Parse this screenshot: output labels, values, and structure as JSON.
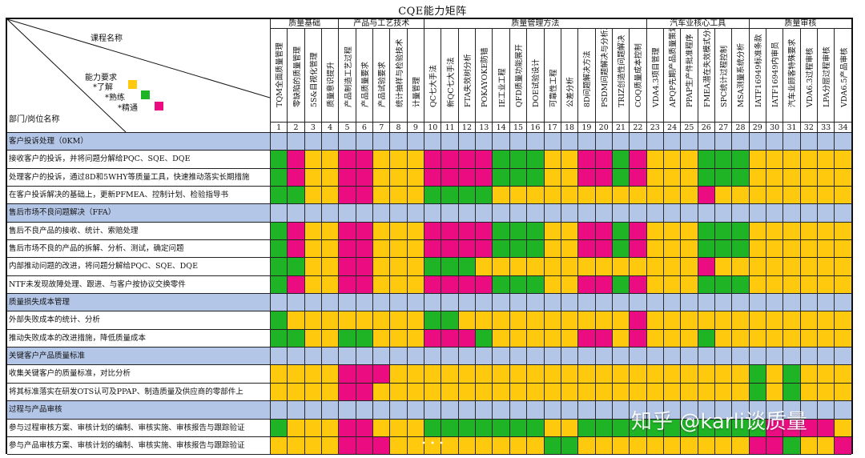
{
  "title": "CQE能力矩阵",
  "corner": {
    "course_label": "课程名称",
    "dept_label": "部门/岗位名称",
    "legend_title": "能力要求",
    "legend": [
      {
        "label": "*了解",
        "color": "#ffc90e"
      },
      {
        "label": "*熟练",
        "color": "#1fb425"
      },
      {
        "label": "*精通",
        "color": "#ec0c82"
      }
    ]
  },
  "colors": {
    "Y": "#ffc90e",
    "G": "#1fb425",
    "P": "#ec0c82",
    "section": "#b4c6e7"
  },
  "groups": [
    {
      "label": "质量基础",
      "span": 4
    },
    {
      "label": "产品与工艺技术",
      "span": 5
    },
    {
      "label": "质量管理方法",
      "span": 13
    },
    {
      "label": "汽车业核心工具",
      "span": 6
    },
    {
      "label": "质量审核",
      "span": 6
    }
  ],
  "courses": [
    "TQM全面质量管理",
    "零缺陷的质量管理",
    "5S&目视化管理",
    "质量意识提升",
    "产品制造工艺过程",
    "产品质量要求",
    "产品试验要求",
    "统计抽样与检验技术",
    "计量管理",
    "QC七大手法",
    "新QC七大手法",
    "FTA失效树分析",
    "POKAYOKE防错",
    "IE工业工程",
    "QFD质量功能展开",
    "DOE试验设计",
    "可靠性工程",
    "公差分析",
    "8D问题解决方法",
    "PSDM问题解决与分析决策",
    "TRIZ创造性问题解决",
    "COQ质量成本控制",
    "VDA4.3项目管理",
    "APQP先期产品质量策划",
    "PPAP生产件批准程序",
    "FMEA潜在失效模式分析",
    "SPC统计过程控制",
    "MSA测量系统分析",
    "IATF16949标准条款",
    "IATF16949内审员",
    "汽车业顾客特殊要求",
    "VDA6.3过程审核",
    "LPA分层过程审核",
    "VDA6.5产品审核"
  ],
  "numbers": [
    "1",
    "2",
    "3",
    "4",
    "5",
    "6",
    "7",
    "8",
    "9",
    "10",
    "11",
    "12",
    "13",
    "14",
    "15",
    "16",
    "17",
    "18",
    "19",
    "20",
    "21",
    "22",
    "23",
    "24",
    "25",
    "26",
    "27",
    "28",
    "29",
    "30",
    "31",
    "32",
    "33",
    "34"
  ],
  "rows": [
    {
      "type": "section",
      "label": "客户投诉处理（0KM）"
    },
    {
      "type": "task",
      "label": "接收客户的投诉，并将问题分解给PQC、SQE、DQE",
      "cells": "GPYYPPYYYPPPPGGGYYPPGPYYYGGGYYYYYY"
    },
    {
      "type": "task",
      "label": "处理客户的投诉，通过8D和5WHY等质量工具，快速推动落实长期措施",
      "cells": "GPYYPPYYYPPPPGGGYYPPGPYYYGGGYYYYYY"
    },
    {
      "type": "task",
      "label": "在客户投诉解决的基础上，更新PFMEA、控制计划、检验指导书",
      "cells": "GGYYPPYYYGGGGYYYYYYYYYYYYPYYYYYYYY"
    },
    {
      "type": "section",
      "label": "售后市场不良问题解决（FFA）"
    },
    {
      "type": "task",
      "label": "售后不良产品的接收、统计、索赔处理",
      "cells": "GPYYPPYYYPPPPGGGYYPPGPYYYGGGYYYYYY"
    },
    {
      "type": "task",
      "label": "售后市场不良的产品的拆解、分析、测试，确定问题",
      "cells": "GPYYPPYYYPPPPGGGYYPPGPYYYGGGYYYYYY"
    },
    {
      "type": "task",
      "label": "内部推动问题的改进，将问题分解给PQC、SQE、DQE",
      "cells": "GGYYPPYYYGGGYYYYYYYYYYYYYPYYYYYYYY"
    },
    {
      "type": "task",
      "label": "NTF未发现故障处理、跟进、与客户按协议交换零件",
      "cells": "GPYYPPYYYPPPPGGGYYPPGPYYYGGGYYYYYY"
    },
    {
      "type": "section",
      "label": "质量损失成本管理"
    },
    {
      "type": "task",
      "label": "外部失败成本的统计、分析",
      "cells": "GYYYYYYYYGGYYYYYYYYYYPYYYYYYYYYYYY"
    },
    {
      "type": "task",
      "label": "推动失败成本的改进措施，降低质量成本",
      "cells": "GGYYGGYYYPPPGYYYYYPPYPYYYGYYYYYYYY"
    },
    {
      "type": "section",
      "label": "关键客户产品质量标准"
    },
    {
      "type": "task",
      "label": "收集关键客户的质量标准，对比分析",
      "cells": "YYYYPPPYYYYYYYYYYYYYYYYYYYYYGYGYYY"
    },
    {
      "type": "task",
      "label": "将其标准落实在研发OTS认可及PPAP、制造质量及供应商的零部件上",
      "cells": "YYYYPPYYYYYYYYYYYYYYYYYYYYYYGYGYYY"
    },
    {
      "type": "section",
      "label": "过程与产品审核"
    },
    {
      "type": "task",
      "label": "参与过程审核方案、审核计划的编制、审核实施、审核报告与跟踪验证",
      "cells": "GYYYPPYYYGGGGGGGYYGGGGGGGGGGGPPPPY"
    },
    {
      "type": "task",
      "label": "参与产品审核方案、审核计划的编制、审核实施、审核报告与跟踪验证",
      "cells": "YYYYPPPYYYYYYYYYGGYYYYYYYYYYPPGYYP"
    }
  ],
  "watermark": "知乎 @karli谈质量",
  "carousel_dots": "• • •"
}
